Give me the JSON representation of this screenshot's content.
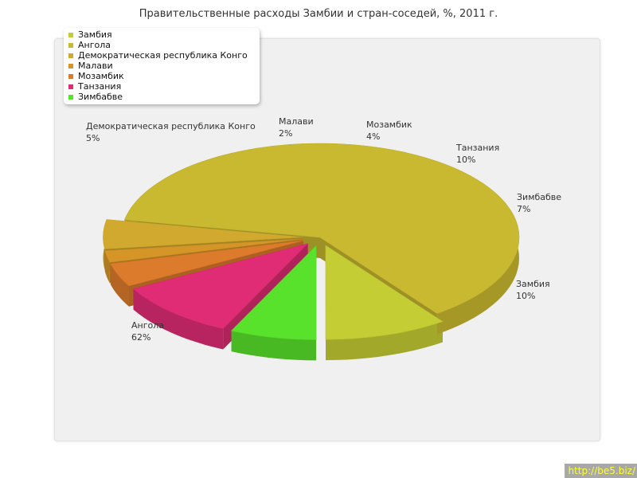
{
  "chart_data": {
    "type": "pie",
    "title": "Правительственные расходы Замбии и стран-соседей, %, 2011 г.",
    "legend_position": "top-left",
    "slices": [
      {
        "name": "Замбия",
        "value": 10,
        "label": "10%",
        "color": "#c4cd33"
      },
      {
        "name": "Ангола",
        "value": 62,
        "label": "62%",
        "color": "#c9b930"
      },
      {
        "name": "Демократическая республика Конго",
        "value": 5,
        "label": "5%",
        "color": "#d1a92e"
      },
      {
        "name": "Малави",
        "value": 2,
        "label": "2%",
        "color": "#d59527"
      },
      {
        "name": "Мозамбик",
        "value": 4,
        "label": "4%",
        "color": "#dc7b2b"
      },
      {
        "name": "Танзания",
        "value": 10,
        "label": "10%",
        "color": "#e02c74"
      },
      {
        "name": "Зимбабве",
        "value": 7,
        "label": "7%",
        "color": "#59e22b"
      }
    ]
  },
  "watermark": "http://be5.biz/"
}
